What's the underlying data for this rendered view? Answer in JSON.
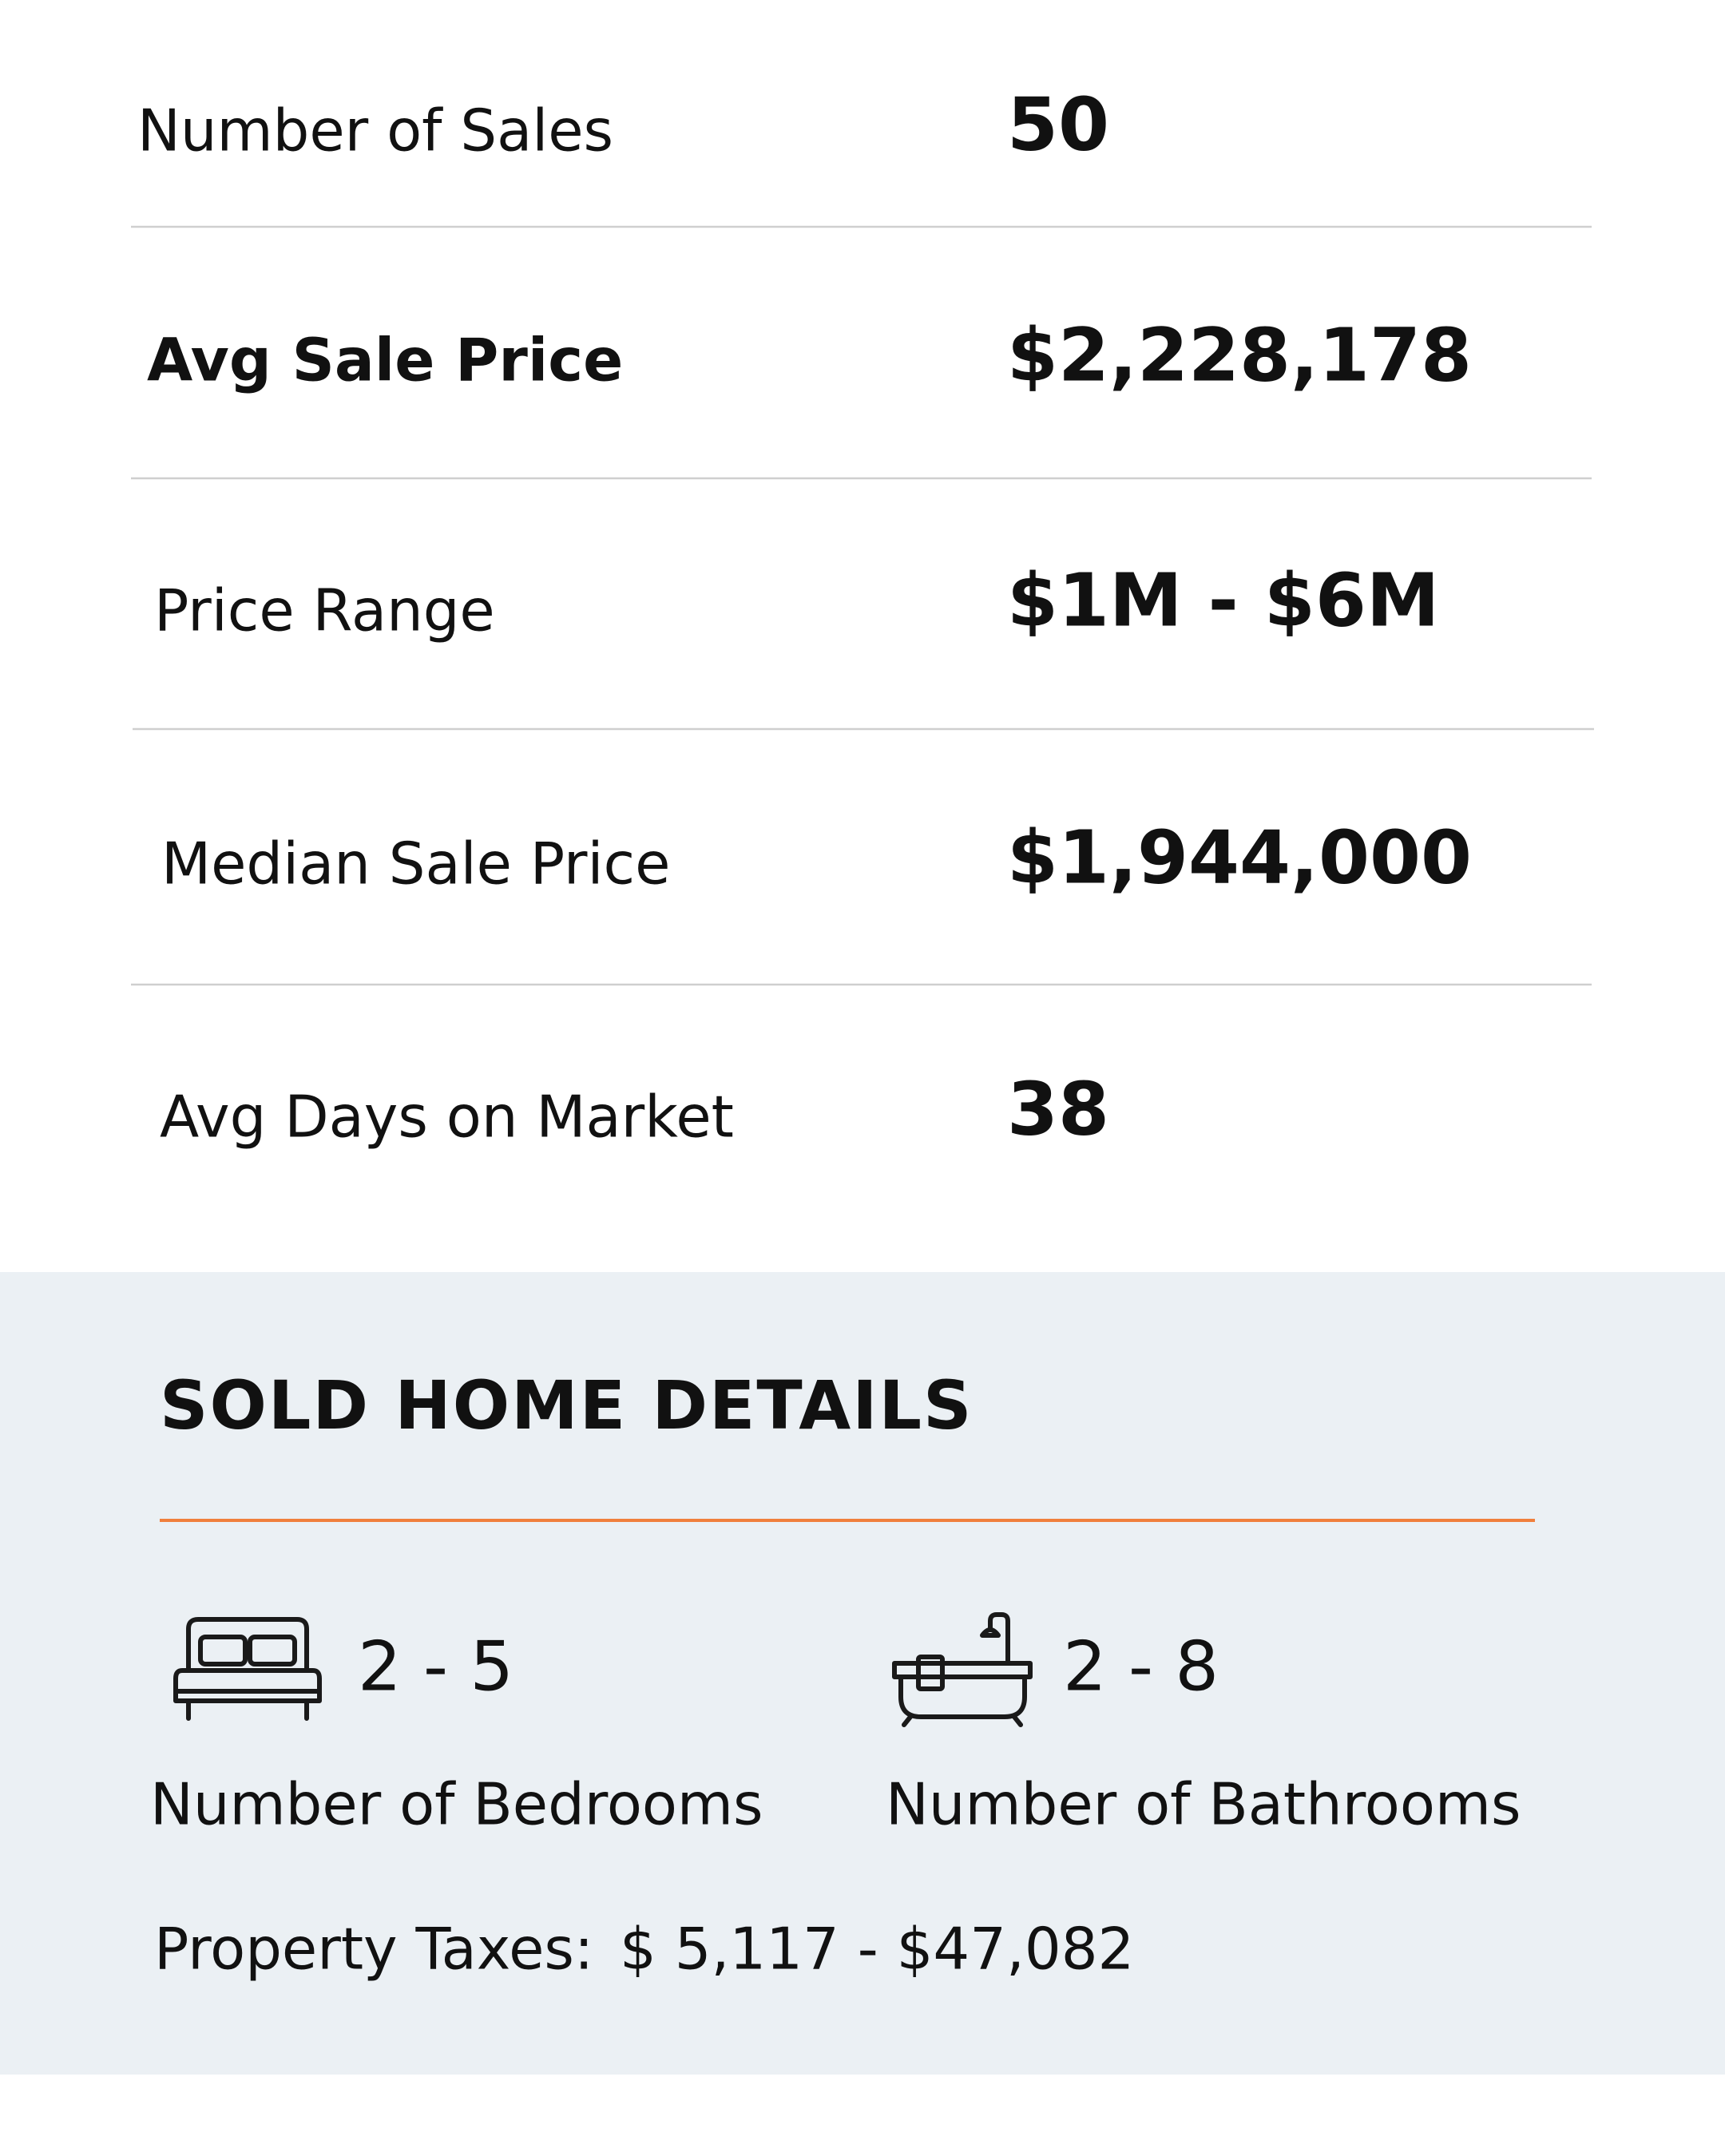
{
  "stats": [
    {
      "label": "Number of Sales",
      "value": "50"
    },
    {
      "label": "Avg Sale Price",
      "value": "$2,228,178"
    },
    {
      "label": "Price Range",
      "value": "$1M - $6M"
    },
    {
      "label": "Median Sale Price",
      "value": "$1,944,000"
    },
    {
      "label": "Avg Days on Market",
      "value": "38"
    }
  ],
  "details": {
    "title": "SOLD HOME DETAILS",
    "bedrooms": {
      "value": "2 - 5",
      "label": "Number of Bedrooms"
    },
    "bathrooms": {
      "value": "2 - 8",
      "label": "Number of Bathrooms"
    },
    "property_taxes": {
      "label": "Property Taxes:",
      "value": "$ 5,117 - $47,082"
    }
  }
}
